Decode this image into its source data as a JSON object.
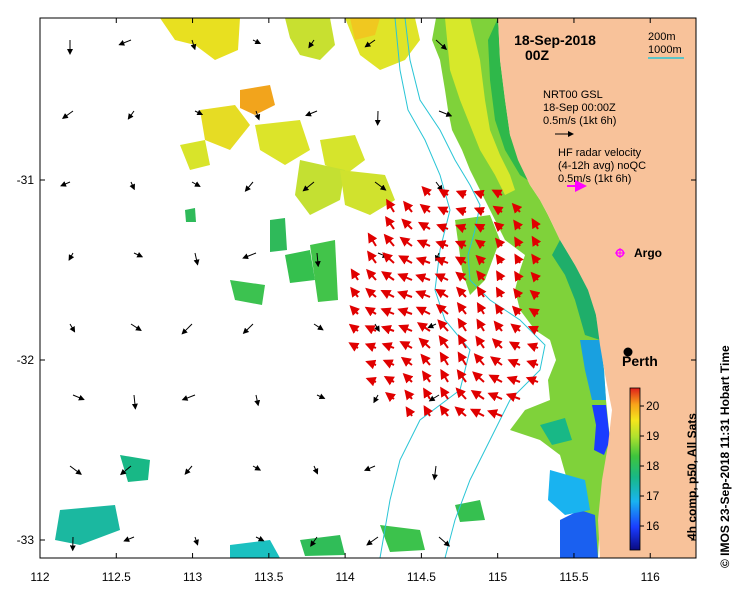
{
  "title": {
    "date": "18-Sep-2018",
    "time": "00Z"
  },
  "map": {
    "lon_range": [
      112,
      116.3
    ],
    "lat_range": [
      -33.1,
      -30.1
    ],
    "x_ticks": [
      "112",
      "112.5",
      "113",
      "113.5",
      "114",
      "114.5",
      "115",
      "115.5",
      "116"
    ],
    "x_tick_values": [
      112,
      112.5,
      113,
      113.5,
      114,
      114.5,
      115,
      115.5,
      116
    ],
    "y_ticks": [
      "-31",
      "-32",
      "-33"
    ],
    "y_tick_values": [
      -31,
      -32,
      -33
    ],
    "land_color": "#f8c29a",
    "isobath_color": "#29c5d6"
  },
  "isobath_legend": {
    "line1": "200m",
    "line2": "1000m"
  },
  "model_legend": {
    "line1": "NRT00 GSL",
    "line2": "18-Sep 00:00Z",
    "line3": "0.5m/s (1kt 6h)"
  },
  "radar_legend": {
    "line1": "HF radar velocity",
    "line2": "(4-12h avg) noQC",
    "line3": "0.5m/s (1kt 6h)"
  },
  "places": {
    "argo": "Argo",
    "perth": "Perth"
  },
  "colorbar": {
    "ticks": [
      "20",
      "19",
      "18",
      "17",
      "16"
    ],
    "tick_values": [
      20,
      19,
      18,
      17,
      16
    ],
    "range": [
      15.2,
      20.6
    ],
    "label": "4h comp, p50, All Sats"
  },
  "credit": "© IMOS 23-Sep-2018 11:31 Hobart Time"
}
